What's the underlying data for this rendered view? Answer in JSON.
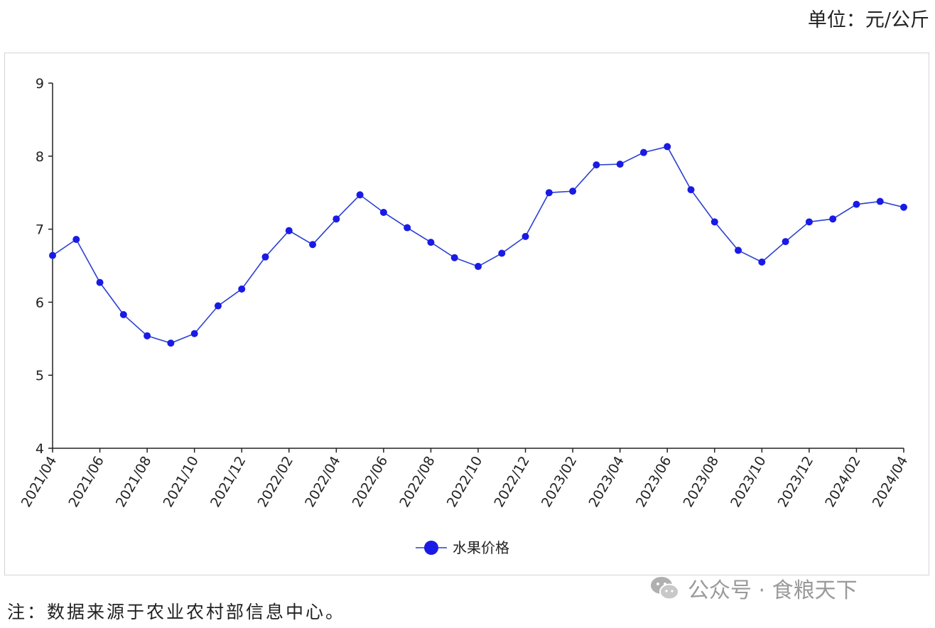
{
  "unit_label": "单位：元/公斤",
  "note": "注：数据来源于农业农村部信息中心。",
  "watermark": {
    "text": "公众号 · 食粮天下",
    "icon": "wechat-icon"
  },
  "colors": {
    "series": "#1a1ae6",
    "line": "#2b3fd1",
    "axis": "#222222"
  },
  "chart_data": {
    "type": "line",
    "title": "",
    "xlabel": "",
    "ylabel": "",
    "ylim": [
      4,
      9
    ],
    "yticks": [
      4,
      5,
      6,
      7,
      8,
      9
    ],
    "grid": false,
    "legend_position": "bottom",
    "x_tick_labels": [
      "2021/04",
      "2021/06",
      "2021/08",
      "2021/10",
      "2021/12",
      "2022/02",
      "2022/04",
      "2022/06",
      "2022/08",
      "2022/10",
      "2022/12",
      "2023/02",
      "2023/04",
      "2023/06",
      "2023/08",
      "2023/10",
      "2023/12",
      "2024/02",
      "2024/04"
    ],
    "x": [
      "2021/04",
      "2021/05",
      "2021/06",
      "2021/07",
      "2021/08",
      "2021/09",
      "2021/10",
      "2021/11",
      "2021/12",
      "2022/01",
      "2022/02",
      "2022/03",
      "2022/04",
      "2022/05",
      "2022/06",
      "2022/07",
      "2022/08",
      "2022/09",
      "2022/10",
      "2022/11",
      "2022/12",
      "2023/01",
      "2023/02",
      "2023/03",
      "2023/04",
      "2023/05",
      "2023/06",
      "2023/07",
      "2023/08",
      "2023/09",
      "2023/10",
      "2023/11",
      "2023/12",
      "2024/01",
      "2024/02",
      "2024/03",
      "2024/04"
    ],
    "series": [
      {
        "name": "水果价格",
        "values": [
          6.64,
          6.86,
          6.27,
          5.83,
          5.54,
          5.44,
          5.57,
          5.95,
          6.18,
          6.62,
          6.98,
          6.79,
          7.14,
          7.47,
          7.23,
          7.02,
          6.82,
          6.61,
          6.49,
          6.67,
          6.9,
          7.5,
          7.52,
          7.88,
          7.89,
          8.05,
          8.13,
          7.54,
          7.1,
          6.71,
          6.55,
          6.83,
          7.1,
          7.14,
          7.34,
          7.38,
          7.3
        ]
      }
    ]
  }
}
